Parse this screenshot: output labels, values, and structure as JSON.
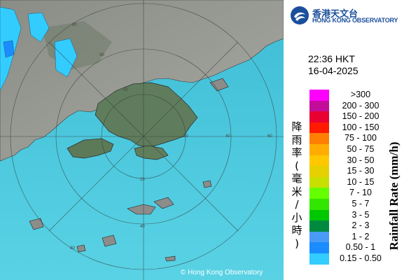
{
  "header": {
    "org_name_zh": "香港天文台",
    "org_name_en": "HONG KONG OBSERVATORY"
  },
  "timestamp": {
    "time": "22:36 HKT",
    "date": "16-04-2025"
  },
  "legend": {
    "title_zh": "降雨率(毫米/小時)",
    "title_en": "Rainfall Rate (mm/h)",
    "classes": [
      {
        "label": ">300",
        "color": "#ff00ff"
      },
      {
        "label": "200 - 300",
        "color": "#c40c9a"
      },
      {
        "label": "150 - 200",
        "color": "#e80033"
      },
      {
        "label": "100 - 150",
        "color": "#ff1a00"
      },
      {
        "label": "75 - 100",
        "color": "#ff7f00"
      },
      {
        "label": "50 - 75",
        "color": "#ffad00"
      },
      {
        "label": "30 - 50",
        "color": "#ffc800"
      },
      {
        "label": "15 - 30",
        "color": "#e6d000"
      },
      {
        "label": "10 - 15",
        "color": "#c8e000"
      },
      {
        "label": "7 - 10",
        "color": "#66ff00"
      },
      {
        "label": "5 - 7",
        "color": "#33e600"
      },
      {
        "label": "3 - 5",
        "color": "#00c800"
      },
      {
        "label": "2 - 3",
        "color": "#008a40"
      },
      {
        "label": "1 - 2",
        "color": "#4a9bf5"
      },
      {
        "label": "0.50 - 1",
        "color": "#1a8cff"
      },
      {
        "label": "0.15 - 0.50",
        "color": "#33ccff"
      }
    ]
  },
  "map": {
    "range_ring_labels": [
      "60",
      "40",
      "20",
      "20",
      "40",
      "60",
      "60",
      "40",
      "20"
    ],
    "copyright": "© Hong Kong Observatory"
  }
}
